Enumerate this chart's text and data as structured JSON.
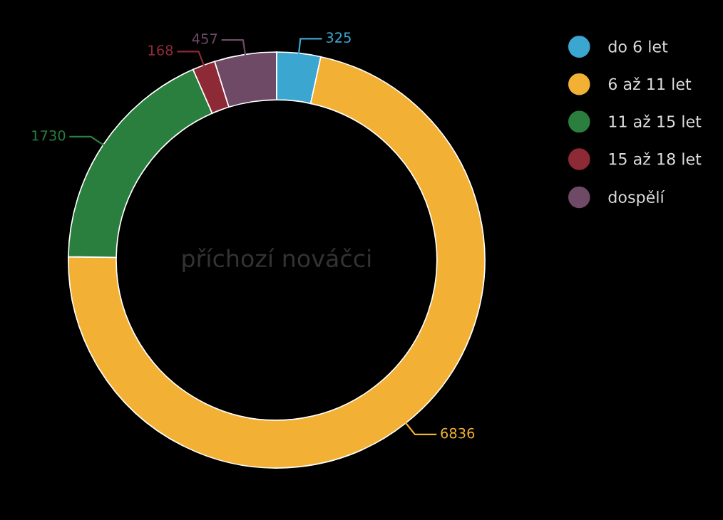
{
  "chart_data": {
    "type": "donut",
    "title": "příchozí nováčci",
    "categories": [
      "do 6 let",
      "6 až 11 let",
      "11 až 15 let",
      "15 až 18 let",
      "dospělí"
    ],
    "values": [
      325,
      6836,
      1730,
      168,
      457
    ],
    "colors": [
      "#3ba7d0",
      "#f2b134",
      "#2a7f3e",
      "#8e2a36",
      "#6e4a66"
    ],
    "data_labels": true,
    "legend": "top right"
  }
}
